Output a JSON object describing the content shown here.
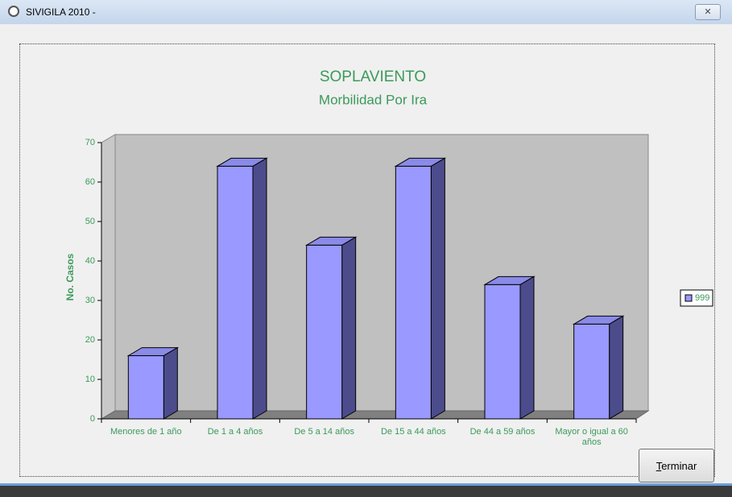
{
  "window": {
    "title": "SIVIGILA 2010 -",
    "button": "Terminar"
  },
  "chart_data": {
    "type": "bar",
    "title": "SOPLAVIENTO",
    "subtitle": "Morbilidad Por Ira",
    "y_label": "No. Casos",
    "categories": [
      "Menores de 1 año",
      "De 1 a 4 años",
      "De 5 a 14 años",
      "De 15 a 44 años",
      "De 44 a 59 años",
      "Mayor o igual a 60 años"
    ],
    "series": [
      {
        "name": "999",
        "color": "#9999ff",
        "values": [
          16,
          64,
          44,
          64,
          34,
          24
        ]
      }
    ],
    "ylim": [
      0,
      70
    ],
    "yticks": [
      0,
      10,
      20,
      30,
      40,
      50,
      60,
      70
    ],
    "grid": false,
    "legend": "right"
  }
}
